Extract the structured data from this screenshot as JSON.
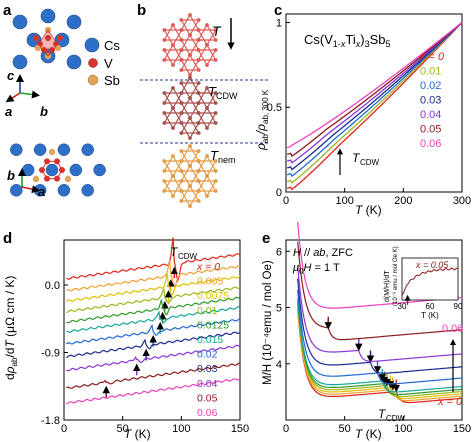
{
  "panels": {
    "a": {
      "label": "a",
      "legend": [
        {
          "label": "Cs",
          "color": "#2e6fc7"
        },
        {
          "label": "V",
          "color": "#d9312b"
        },
        {
          "label": "Sb",
          "color": "#e0a35a"
        }
      ],
      "axes": [
        "a",
        "b",
        "c"
      ],
      "axes_bottom": [
        "b",
        "a"
      ]
    },
    "b": {
      "label": "b",
      "t_arrow_label": "T",
      "t_cdw_label": "T",
      "t_cdw_sub": "CDW",
      "t_nem_label": "T",
      "t_nem_sub": "nem",
      "colors": [
        "#e05a56",
        "#a8514e",
        "#e59a43"
      ]
    },
    "c": {
      "label": "c",
      "formula": "Cs(V1-xTix)3Sb5",
      "formula_parts": [
        "Cs(V",
        "1-",
        "x",
        "Ti",
        "x",
        ")",
        "3",
        "Sb",
        "5"
      ],
      "legend_title": "x = 0",
      "annotation": "T",
      "annotation_sub": "CDW",
      "ylabel": "ρab/ρab, 300 K",
      "ylabel_parts": [
        "ρ",
        "ab",
        "/ρ",
        "ab, 300 K"
      ],
      "xlabel": "T (K)"
    },
    "d": {
      "label": "d",
      "annotation": "T",
      "annotation_sub": "CDW",
      "ylabel": "dρab/dT (μΩ cm / K)",
      "ylabel_parts": [
        "d",
        "ρ",
        "ab",
        "/d",
        "T",
        " (μΩ cm / K)"
      ],
      "xlabel": "T (K)"
    },
    "e": {
      "label": "e",
      "cond1": "H // ab, ZFC",
      "cond2": "μ0H = 1 T",
      "cond1_parts": [
        "H",
        " // ",
        "ab",
        ", ZFC"
      ],
      "cond2_parts": [
        "μ",
        "0",
        "H",
        " = 1 T"
      ],
      "annotation": "T",
      "annotation_sub": "CDW",
      "ylabel": "M/H (10⁻⁴emu / mol Oe)",
      "xlabel": "T (K)",
      "label_top": "0.06",
      "label_bottom": "x = 0",
      "inset": {
        "title": "x = 0.05",
        "ylabel": "d(M/H)/dT",
        "ylabel2": "(10⁻⁶ emu / mol Oe K)",
        "xlabel": "T (K)",
        "xticks": [
          "30",
          "60",
          "90"
        ]
      }
    }
  },
  "series_labels": [
    {
      "label": "x = 0",
      "color": "#e2231a"
    },
    {
      "label": "0.005",
      "color": "#f0a030"
    },
    {
      "label": "0.0075",
      "color": "#e0c000"
    },
    {
      "label": "0.01",
      "color": "#9fb51c"
    },
    {
      "label": "0.0125",
      "color": "#2f9a2c"
    },
    {
      "label": "0.015",
      "color": "#15a89a"
    },
    {
      "label": "0.02",
      "color": "#1f6ad0"
    },
    {
      "label": "0.03",
      "color": "#1a2a90"
    },
    {
      "label": "0.04",
      "color": "#8a35d8"
    },
    {
      "label": "0.05",
      "color": "#8b1a1a"
    },
    {
      "label": "0.06",
      "color": "#ee3fbd"
    }
  ],
  "series_labels_c": [
    {
      "label": "x = 0",
      "color": "#e2231a"
    },
    {
      "label": "0.01",
      "color": "#9fb51c"
    },
    {
      "label": "0.02",
      "color": "#1f6ad0"
    },
    {
      "label": "0.03",
      "color": "#1a2a90"
    },
    {
      "label": "0.04",
      "color": "#8a35d8"
    },
    {
      "label": "0.05",
      "color": "#8b1a1a"
    },
    {
      "label": "0.06",
      "color": "#ee3fbd"
    }
  ],
  "chart_data": [
    {
      "panel": "c",
      "type": "line",
      "title": "Cs(V1-xTix)3Sb5",
      "xlabel": "T (K)",
      "ylabel": "ρab/ρab, 300 K",
      "xlim": [
        0,
        300
      ],
      "ylim": [
        0,
        1.05
      ],
      "xticks": [
        0,
        100,
        200,
        300
      ],
      "yticks": [
        0,
        0.5,
        1.0
      ],
      "series": [
        {
          "name": "x = 0",
          "color": "#e2231a",
          "tcdw": 94,
          "rho0": 0.02
        },
        {
          "name": "0.01",
          "color": "#9fb51c",
          "tcdw": 89,
          "rho0": 0.06
        },
        {
          "name": "0.02",
          "color": "#1f6ad0",
          "tcdw": 84,
          "rho0": 0.1
        },
        {
          "name": "0.03",
          "color": "#1a2a90",
          "tcdw": 80,
          "rho0": 0.14
        },
        {
          "name": "0.04",
          "color": "#8a35d8",
          "tcdw": 74,
          "rho0": 0.18
        },
        {
          "name": "0.05",
          "color": "#8b1a1a",
          "tcdw": 70,
          "rho0": 0.22
        },
        {
          "name": "0.06",
          "color": "#ee3fbd",
          "tcdw": 0,
          "rho0": 0.26
        }
      ],
      "arrow_at": {
        "T": 92,
        "y": 0.26
      }
    },
    {
      "panel": "d",
      "type": "line",
      "xlabel": "T (K)",
      "ylabel": "dρab/dT (μΩ cm / K)",
      "xlim": [
        0,
        150
      ],
      "ylim": [
        -1.8,
        0.6
      ],
      "xticks": [
        0,
        50,
        100,
        150
      ],
      "yticks": [
        0.0,
        -0.9,
        -1.8
      ],
      "ytick_labels": [
        "0.0",
        "-0.9",
        "-1.8"
      ],
      "series": [
        {
          "name": "x = 0",
          "color": "#e2231a",
          "tcdw": 94,
          "peak": 0.42,
          "offset": 0.08
        },
        {
          "name": "0.005",
          "color": "#f0a030",
          "tcdw": 91,
          "peak": 0.28,
          "offset": -0.08
        },
        {
          "name": "0.0075",
          "color": "#e0c000",
          "tcdw": 89,
          "peak": 0.2,
          "offset": -0.22
        },
        {
          "name": "0.01",
          "color": "#9fb51c",
          "tcdw": 86,
          "peak": 0.16,
          "offset": -0.36
        },
        {
          "name": "0.0125",
          "color": "#2f9a2c",
          "tcdw": 84,
          "peak": 0.14,
          "offset": -0.5
        },
        {
          "name": "0.015",
          "color": "#15a89a",
          "tcdw": 82,
          "peak": 0.12,
          "offset": -0.63
        },
        {
          "name": "0.02",
          "color": "#1f6ad0",
          "tcdw": 76,
          "peak": 0.1,
          "offset": -0.79
        },
        {
          "name": "0.03",
          "color": "#1a2a90",
          "tcdw": 70,
          "peak": 0.08,
          "offset": -0.96
        },
        {
          "name": "0.04",
          "color": "#8a35d8",
          "tcdw": 62,
          "peak": 0.06,
          "offset": -1.14
        },
        {
          "name": "0.05",
          "color": "#8b1a1a",
          "tcdw": 36,
          "peak": 0.05,
          "offset": -1.38
        },
        {
          "name": "0.06",
          "color": "#ee3fbd",
          "tcdw": 0,
          "peak": 0.0,
          "offset": -1.58
        }
      ]
    },
    {
      "panel": "e",
      "type": "line",
      "xlabel": "T (K)",
      "ylabel": "M/H (10⁻⁴emu / mol Oe)",
      "xlim": [
        0,
        150
      ],
      "ylim": [
        3.0,
        6.2
      ],
      "xticks": [
        0,
        50,
        100,
        150
      ],
      "yticks": [
        4,
        5,
        6
      ],
      "series": [
        {
          "name": "x = 0",
          "color": "#e2231a",
          "tcdw": 94,
          "base": 3.26
        },
        {
          "name": "0.005",
          "color": "#f0a030",
          "tcdw": 91,
          "base": 3.3
        },
        {
          "name": "0.0075",
          "color": "#e0c000",
          "tcdw": 89,
          "base": 3.34
        },
        {
          "name": "0.01",
          "color": "#9fb51c",
          "tcdw": 86,
          "base": 3.38
        },
        {
          "name": "0.0125",
          "color": "#2f9a2c",
          "tcdw": 84,
          "base": 3.42
        },
        {
          "name": "0.015",
          "color": "#15a89a",
          "tcdw": 82,
          "base": 3.47
        },
        {
          "name": "0.02",
          "color": "#1f6ad0",
          "tcdw": 78,
          "base": 3.62
        },
        {
          "name": "0.03",
          "color": "#1a2a90",
          "tcdw": 72,
          "base": 3.82
        },
        {
          "name": "0.04",
          "color": "#8a35d8",
          "tcdw": 62,
          "base": 4.05
        },
        {
          "name": "0.05",
          "color": "#8b1a1a",
          "tcdw": 36,
          "base": 4.48
        },
        {
          "name": "0.06",
          "color": "#ee3fbd",
          "tcdw": 0,
          "base": 5.05
        }
      ],
      "inset": {
        "xlabel": "T (K)",
        "xlim": [
          30,
          90
        ],
        "xticks": [
          30,
          60,
          90
        ],
        "series": [
          {
            "name": "x = 0.05",
            "color": "#8b1a1a",
            "arrow_T": 36
          }
        ]
      }
    }
  ]
}
